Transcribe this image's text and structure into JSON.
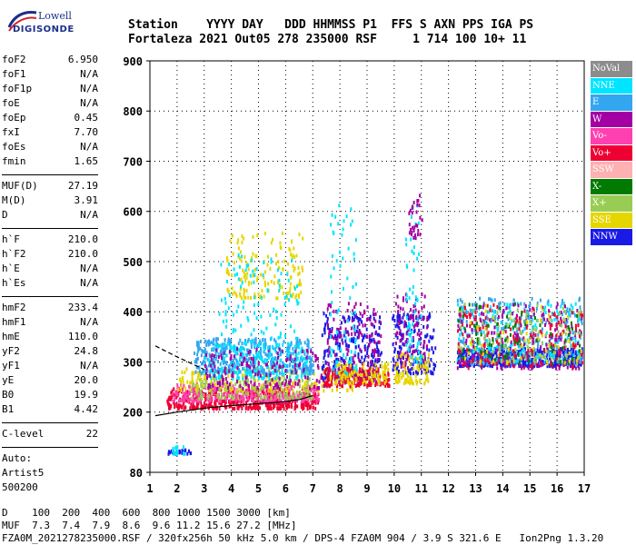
{
  "logo": {
    "top": "Lowell",
    "bottom": "DIGISONDE"
  },
  "header": {
    "line1": "Station    YYYY DAY   DDD HHMMSS P1  FFS S AXN PPS IGA PS",
    "line2": "Fortaleza 2021 Out05 278 235000 RSF     1 714 100 10+ 11"
  },
  "params": {
    "group1": [
      {
        "k": "foF2",
        "v": "6.950"
      },
      {
        "k": "foF1",
        "v": "N/A"
      },
      {
        "k": "foF1p",
        "v": "N/A"
      },
      {
        "k": "foE",
        "v": "N/A"
      },
      {
        "k": "foEp",
        "v": "0.45"
      },
      {
        "k": "fxI",
        "v": "7.70"
      },
      {
        "k": "foEs",
        "v": "N/A"
      },
      {
        "k": "fmin",
        "v": "1.65"
      }
    ],
    "group2": [
      {
        "k": "MUF(D)",
        "v": "27.19"
      },
      {
        "k": "M(D)",
        "v": "3.91"
      },
      {
        "k": "D",
        "v": "N/A"
      }
    ],
    "group3": [
      {
        "k": "h`F",
        "v": "210.0"
      },
      {
        "k": "h`F2",
        "v": "210.0"
      },
      {
        "k": "h`E",
        "v": "N/A"
      },
      {
        "k": "h`Es",
        "v": "N/A"
      }
    ],
    "group4": [
      {
        "k": "hmF2",
        "v": "233.4"
      },
      {
        "k": "hmF1",
        "v": "N/A"
      },
      {
        "k": "hmE",
        "v": "110.0"
      },
      {
        "k": "yF2",
        "v": "24.8"
      },
      {
        "k": "yF1",
        "v": "N/A"
      },
      {
        "k": "yE",
        "v": "20.0"
      },
      {
        "k": "B0",
        "v": "19.9"
      },
      {
        "k": "B1",
        "v": "4.42"
      }
    ],
    "group5": [
      {
        "k": "C-level",
        "v": "22"
      }
    ],
    "auto": [
      "Auto:",
      "Artist5",
      "500200"
    ]
  },
  "bottom": {
    "d_line": "D    100  200  400  600  800 1000 1500 3000 [km]",
    "muf_line": "MUF  7.3  7.4  7.9  8.6  9.6 11.2 15.6 27.2 [MHz]",
    "file_line": "FZA0M_2021278235000.RSF / 320fx256h 50 kHz 5.0 km / DPS-4 FZA0M 904 / 3.9 S 321.6 E   Ion2Png 1.3.20"
  },
  "legend": [
    {
      "name": "NoVal",
      "color": "#8c8c8c"
    },
    {
      "name": "NNE",
      "color": "#00e5ff"
    },
    {
      "name": "E",
      "color": "#33a6f0"
    },
    {
      "name": "W",
      "color": "#a300a3"
    },
    {
      "name": "Vo-",
      "color": "#ff40b0"
    },
    {
      "name": "Vo+",
      "color": "#ee0033"
    },
    {
      "name": "SSW",
      "color": "#ffb0b0"
    },
    {
      "name": "X-",
      "color": "#007a00"
    },
    {
      "name": "X+",
      "color": "#99cc55"
    },
    {
      "name": "SSE",
      "color": "#e6d600"
    },
    {
      "name": "NNW",
      "color": "#1a1ae6"
    }
  ],
  "chart_data": {
    "type": "scatter",
    "xlabel": "",
    "ylabel": "",
    "xlim": [
      1,
      17
    ],
    "ylim": [
      80,
      900
    ],
    "x_ticks": [
      1,
      2,
      3,
      4,
      5,
      6,
      7,
      8,
      9,
      10,
      11,
      12,
      13,
      14,
      15,
      16,
      17
    ],
    "y_ticks": [
      80,
      200,
      300,
      400,
      500,
      600,
      700,
      800,
      900
    ],
    "grid": true,
    "legend_position": "right",
    "clusters": [
      {
        "series": "Vo+",
        "x": [
          1.6,
          7.2
        ],
        "y": [
          210,
          250
        ],
        "n": 520
      },
      {
        "series": "Vo-",
        "x": [
          1.8,
          7.2
        ],
        "y": [
          225,
          260
        ],
        "n": 300
      },
      {
        "series": "SSE",
        "x": [
          2.0,
          8.5
        ],
        "y": [
          245,
          290
        ],
        "n": 220
      },
      {
        "series": "X+",
        "x": [
          2.5,
          7.0
        ],
        "y": [
          230,
          270
        ],
        "n": 140
      },
      {
        "series": "E",
        "x": [
          2.6,
          7.0
        ],
        "y": [
          280,
          350
        ],
        "n": 420
      },
      {
        "series": "NNE",
        "x": [
          3.0,
          6.8
        ],
        "y": [
          270,
          340
        ],
        "n": 220
      },
      {
        "series": "W",
        "x": [
          3.0,
          7.5
        ],
        "y": [
          250,
          330
        ],
        "n": 180
      },
      {
        "series": "SSE",
        "x": [
          3.8,
          6.6
        ],
        "y": [
          430,
          560
        ],
        "n": 160
      },
      {
        "series": "NNE",
        "x": [
          3.5,
          6.5
        ],
        "y": [
          330,
          520
        ],
        "n": 110
      },
      {
        "series": "NNW",
        "x": [
          7.3,
          9.5
        ],
        "y": [
          270,
          400
        ],
        "n": 220
      },
      {
        "series": "W",
        "x": [
          7.5,
          9.5
        ],
        "y": [
          260,
          420
        ],
        "n": 160
      },
      {
        "series": "Vo+",
        "x": [
          7.4,
          9.8
        ],
        "y": [
          255,
          290
        ],
        "n": 170
      },
      {
        "series": "SSE",
        "x": [
          7.6,
          9.8
        ],
        "y": [
          260,
          300
        ],
        "n": 100
      },
      {
        "series": "NNE",
        "x": [
          7.6,
          8.6
        ],
        "y": [
          280,
          620
        ],
        "n": 70
      },
      {
        "series": "NNW",
        "x": [
          9.9,
          11.5
        ],
        "y": [
          280,
          400
        ],
        "n": 170
      },
      {
        "series": "W",
        "x": [
          10.0,
          11.2
        ],
        "y": [
          290,
          440
        ],
        "n": 110
      },
      {
        "series": "SSE",
        "x": [
          10.0,
          11.3
        ],
        "y": [
          260,
          320
        ],
        "n": 90
      },
      {
        "series": "NNE",
        "x": [
          10.4,
          11.0
        ],
        "y": [
          300,
          620
        ],
        "n": 60
      },
      {
        "series": "W",
        "x": [
          10.5,
          11.0
        ],
        "y": [
          550,
          640
        ],
        "n": 30
      },
      {
        "series": "NNW",
        "x": [
          12.3,
          16.9
        ],
        "y": [
          295,
          330
        ],
        "n": 520
      },
      {
        "series": "E",
        "x": [
          12.3,
          16.9
        ],
        "y": [
          300,
          430
        ],
        "n": 300
      },
      {
        "series": "NNE",
        "x": [
          12.3,
          16.9
        ],
        "y": [
          300,
          420
        ],
        "n": 180
      },
      {
        "series": "W",
        "x": [
          12.3,
          16.9
        ],
        "y": [
          290,
          420
        ],
        "n": 180
      },
      {
        "series": "X+",
        "x": [
          12.3,
          16.9
        ],
        "y": [
          300,
          420
        ],
        "n": 140
      },
      {
        "series": "Vo+",
        "x": [
          12.3,
          16.9
        ],
        "y": [
          290,
          420
        ],
        "n": 150
      },
      {
        "series": "X-",
        "x": [
          12.3,
          16.9
        ],
        "y": [
          300,
          420
        ],
        "n": 80
      },
      {
        "series": "SSE",
        "x": [
          12.3,
          16.9
        ],
        "y": [
          300,
          420
        ],
        "n": 60
      },
      {
        "series": "NNW",
        "x": [
          1.6,
          2.5
        ],
        "y": [
          120,
          128
        ],
        "n": 26
      },
      {
        "series": "NNE",
        "x": [
          1.8,
          2.3
        ],
        "y": [
          120,
          135
        ],
        "n": 14
      }
    ],
    "profile_curves": [
      {
        "name": "hmF2 profile",
        "x": [
          1.2,
          2.0,
          3.0,
          4.0,
          5.0,
          6.0,
          6.5,
          7.0
        ],
        "y": [
          193,
          200,
          208,
          213,
          217,
          221,
          225,
          233
        ]
      },
      {
        "name": "virtual height",
        "x": [
          1.2,
          2.0,
          2.6,
          3.0
        ],
        "y": [
          332,
          310,
          295,
          285
        ]
      }
    ]
  }
}
